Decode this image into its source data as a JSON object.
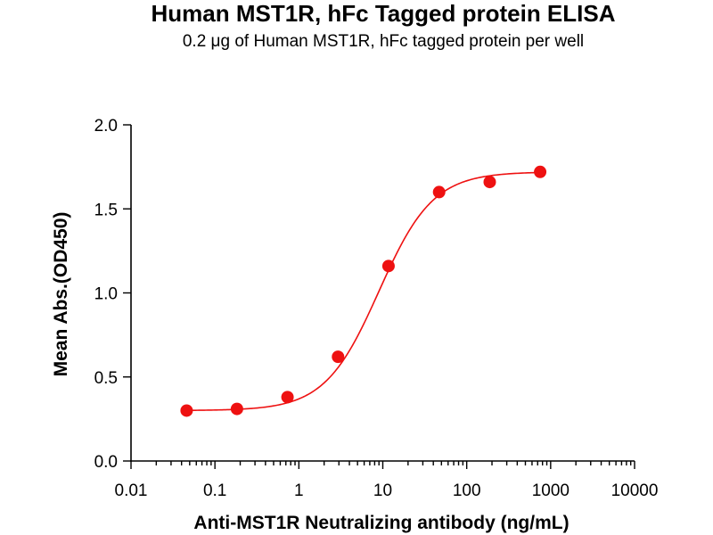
{
  "chart_data": {
    "type": "scatter",
    "title": "Human MST1R, hFc Tagged protein ELISA",
    "subtitle": "0.2 μg of Human MST1R, hFc tagged protein per well",
    "xlabel": "Anti-MST1R Neutralizing antibody (ng/mL)",
    "ylabel": "Mean Abs.(OD450)",
    "x_scale": "log",
    "xlim": [
      0.01,
      10000
    ],
    "ylim": [
      0,
      2.0
    ],
    "x_tick_labels": [
      "0.01",
      "0.1",
      "1",
      "10",
      "100",
      "1000",
      "10000"
    ],
    "y_tick_labels": [
      "0.0",
      "0.5",
      "1.0",
      "1.5",
      "2.0"
    ],
    "grid": false,
    "series": [
      {
        "x": [
          0.046,
          0.183,
          0.732,
          2.93,
          11.7,
          46.9,
          188,
          750
        ],
        "y": [
          0.3,
          0.31,
          0.38,
          0.62,
          1.16,
          1.6,
          1.66,
          1.72
        ],
        "color": "#ee1111",
        "fit": "four-parameter logistic"
      }
    ]
  }
}
